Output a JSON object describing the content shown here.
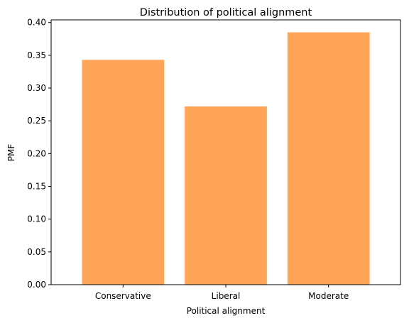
{
  "chart_data": {
    "type": "bar",
    "title": "Distribution of political alignment",
    "xlabel": "Political alignment",
    "ylabel": "PMF",
    "categories": [
      "Conservative",
      "Liberal",
      "Moderate"
    ],
    "values": [
      0.343,
      0.272,
      0.385
    ],
    "ylim": [
      0,
      0.404
    ],
    "yticks": [
      0.0,
      0.05,
      0.1,
      0.15,
      0.2,
      0.25,
      0.3,
      0.35,
      0.4
    ],
    "ytick_labels": [
      "0.00",
      "0.05",
      "0.10",
      "0.15",
      "0.20",
      "0.25",
      "0.30",
      "0.35",
      "0.40"
    ],
    "bar_color": "#ffa557",
    "grid": false,
    "legend": "none"
  }
}
